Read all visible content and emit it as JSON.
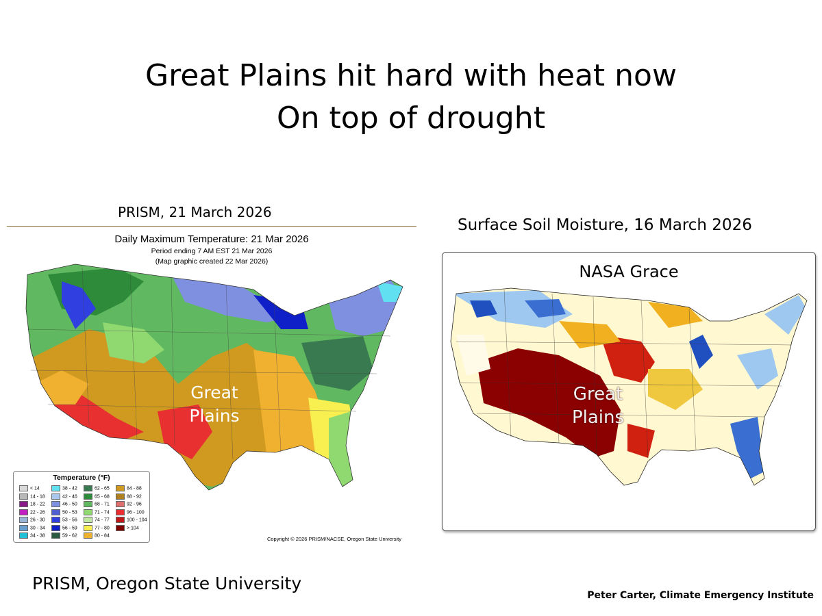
{
  "title": {
    "line1": "Great Plains hit hard with heat now",
    "line2": "On top of drought"
  },
  "left_panel": {
    "caption": "PRISM, 21 March 2026",
    "map_title": "Daily Maximum Temperature: 21 Mar 2026",
    "subtitle1": "Period ending 7 AM EST 21 Mar 2026",
    "subtitle2": "(Map graphic created 22 Mar 2026)",
    "region_label_line1": "Great",
    "region_label_line2": "Plains",
    "legend": {
      "title": "Temperature (°F)",
      "items": [
        {
          "label": "< 14",
          "color": "#d9d9d9"
        },
        {
          "label": "14 - 18",
          "color": "#b8b8b8"
        },
        {
          "label": "18 - 22",
          "color": "#8b1a8b"
        },
        {
          "label": "22 - 26",
          "color": "#c020c0"
        },
        {
          "label": "26 - 30",
          "color": "#9ab4d8"
        },
        {
          "label": "30 - 34",
          "color": "#6aa0d0"
        },
        {
          "label": "34 - 38",
          "color": "#20c0d8"
        },
        {
          "label": "38 - 42",
          "color": "#60e0f0"
        },
        {
          "label": "42 - 46",
          "color": "#a8c8f0"
        },
        {
          "label": "46 - 50",
          "color": "#8090e0"
        },
        {
          "label": "50 - 53",
          "color": "#5060d0"
        },
        {
          "label": "53 - 56",
          "color": "#3040e0"
        },
        {
          "label": "56 - 59",
          "color": "#1020c8"
        },
        {
          "label": "59 - 62",
          "color": "#2a5a40"
        },
        {
          "label": "62 - 65",
          "color": "#3a7a50"
        },
        {
          "label": "65 - 68",
          "color": "#2e8b3a"
        },
        {
          "label": "68 - 71",
          "color": "#60b860"
        },
        {
          "label": "71 - 74",
          "color": "#90d870"
        },
        {
          "label": "74 - 77",
          "color": "#c0e8a0"
        },
        {
          "label": "77 - 80",
          "color": "#f8f050"
        },
        {
          "label": "80 - 84",
          "color": "#f0b030"
        },
        {
          "label": "84 - 88",
          "color": "#d09a20"
        },
        {
          "label": "88 - 92",
          "color": "#b08020"
        },
        {
          "label": "92 - 96",
          "color": "#e07070"
        },
        {
          "label": "96 - 100",
          "color": "#e83030"
        },
        {
          "label": "100 - 104",
          "color": "#c01818"
        },
        {
          "label": "> 104",
          "color": "#800000"
        }
      ]
    },
    "copyright": "Copyright © 2026 PRISM/NACSE, Oregon State University"
  },
  "right_panel": {
    "caption": "Surface Soil Moisture, 16 March 2026",
    "map_label": "NASA Grace",
    "region_label_line1": "Great",
    "region_label_line2": "Plains"
  },
  "footer": {
    "left": "PRISM, Oregon State University",
    "right": "Peter Carter, Climate Emergency  Institute"
  },
  "colors": {
    "temp_hot": "#e83030",
    "temp_warm": "#d09a20",
    "temp_mild": "#60b860",
    "temp_cold": "#3040e0",
    "soil_dry": "#8b0000",
    "soil_medium": "#f0b020",
    "soil_wet": "#2050c0"
  }
}
